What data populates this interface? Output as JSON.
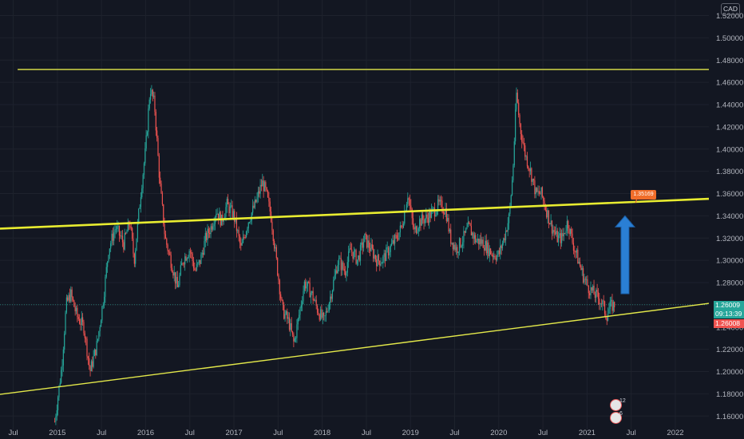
{
  "header": {
    "currency_badge": "CAD"
  },
  "price_panel": {
    "last_price": "1.26009",
    "countdown": "09:13:39",
    "bid_price": "1.26008",
    "last_color": "#26a69a",
    "bid_color": "#ef5350"
  },
  "annotation": {
    "callout_text": "1.35169",
    "callout_color": "#f06d2a",
    "arrow_color": "#2a7fd4"
  },
  "events": {
    "badge_1": "12",
    "badge_2": "6"
  },
  "chart_data": {
    "type": "candlestick",
    "instrument_quote": "CAD",
    "y_ticks": [
      "1.52000",
      "1.50000",
      "1.48000",
      "1.46000",
      "1.44000",
      "1.42000",
      "1.40000",
      "1.38000",
      "1.36000",
      "1.34000",
      "1.32000",
      "1.30000",
      "1.28000",
      "1.26000",
      "1.24000",
      "1.22000",
      "1.20000",
      "1.18000",
      "1.16000"
    ],
    "y_tick_values": [
      1.52,
      1.5,
      1.48,
      1.46,
      1.44,
      1.42,
      1.4,
      1.38,
      1.36,
      1.34,
      1.32,
      1.3,
      1.28,
      1.26,
      1.24,
      1.22,
      1.2,
      1.18,
      1.16
    ],
    "ylim": [
      1.148,
      1.534
    ],
    "x_tick_labels": [
      {
        "label": "Jul",
        "t": 2014.5
      },
      {
        "label": "2015",
        "t": 2015.0
      },
      {
        "label": "Jul",
        "t": 2015.5
      },
      {
        "label": "2016",
        "t": 2016.0
      },
      {
        "label": "Jul",
        "t": 2016.5
      },
      {
        "label": "2017",
        "t": 2017.0
      },
      {
        "label": "Jul",
        "t": 2017.5
      },
      {
        "label": "2018",
        "t": 2018.0
      },
      {
        "label": "Jul",
        "t": 2018.5
      },
      {
        "label": "2019",
        "t": 2019.0
      },
      {
        "label": "Jul",
        "t": 2019.5
      },
      {
        "label": "2020",
        "t": 2020.0
      },
      {
        "label": "Jul",
        "t": 2020.5
      },
      {
        "label": "2021",
        "t": 2021.0
      },
      {
        "label": "Jul",
        "t": 2021.5
      },
      {
        "label": "2022",
        "t": 2022.0
      }
    ],
    "xlim": [
      2014.35,
      2022.38
    ],
    "price_path": [
      [
        2014.97,
        1.155
      ],
      [
        2015.05,
        1.205
      ],
      [
        2015.1,
        1.26
      ],
      [
        2015.15,
        1.27
      ],
      [
        2015.22,
        1.25
      ],
      [
        2015.3,
        1.24
      ],
      [
        2015.37,
        1.2
      ],
      [
        2015.45,
        1.225
      ],
      [
        2015.52,
        1.265
      ],
      [
        2015.58,
        1.31
      ],
      [
        2015.66,
        1.33
      ],
      [
        2015.75,
        1.315
      ],
      [
        2015.82,
        1.335
      ],
      [
        2015.87,
        1.3
      ],
      [
        2015.95,
        1.365
      ],
      [
        2016.0,
        1.4
      ],
      [
        2016.05,
        1.455
      ],
      [
        2016.1,
        1.44
      ],
      [
        2016.16,
        1.37
      ],
      [
        2016.22,
        1.32
      ],
      [
        2016.3,
        1.295
      ],
      [
        2016.36,
        1.275
      ],
      [
        2016.42,
        1.3
      ],
      [
        2016.5,
        1.31
      ],
      [
        2016.56,
        1.29
      ],
      [
        2016.62,
        1.3
      ],
      [
        2016.68,
        1.32
      ],
      [
        2016.74,
        1.33
      ],
      [
        2016.8,
        1.345
      ],
      [
        2016.86,
        1.335
      ],
      [
        2016.92,
        1.35
      ],
      [
        2017.0,
        1.34
      ],
      [
        2017.08,
        1.31
      ],
      [
        2017.16,
        1.335
      ],
      [
        2017.24,
        1.35
      ],
      [
        2017.32,
        1.37
      ],
      [
        2017.36,
        1.362
      ],
      [
        2017.42,
        1.34
      ],
      [
        2017.48,
        1.3
      ],
      [
        2017.55,
        1.255
      ],
      [
        2017.62,
        1.245
      ],
      [
        2017.68,
        1.225
      ],
      [
        2017.74,
        1.252
      ],
      [
        2017.8,
        1.28
      ],
      [
        2017.88,
        1.27
      ],
      [
        2017.95,
        1.255
      ],
      [
        2018.02,
        1.245
      ],
      [
        2018.1,
        1.27
      ],
      [
        2018.18,
        1.3
      ],
      [
        2018.26,
        1.29
      ],
      [
        2018.32,
        1.31
      ],
      [
        2018.4,
        1.3
      ],
      [
        2018.48,
        1.32
      ],
      [
        2018.55,
        1.31
      ],
      [
        2018.62,
        1.3
      ],
      [
        2018.68,
        1.3
      ],
      [
        2018.76,
        1.31
      ],
      [
        2018.84,
        1.32
      ],
      [
        2018.9,
        1.33
      ],
      [
        2018.97,
        1.36
      ],
      [
        2019.04,
        1.325
      ],
      [
        2019.1,
        1.335
      ],
      [
        2019.18,
        1.338
      ],
      [
        2019.25,
        1.343
      ],
      [
        2019.32,
        1.35
      ],
      [
        2019.4,
        1.345
      ],
      [
        2019.45,
        1.32
      ],
      [
        2019.52,
        1.31
      ],
      [
        2019.6,
        1.32
      ],
      [
        2019.66,
        1.33
      ],
      [
        2019.74,
        1.318
      ],
      [
        2019.82,
        1.316
      ],
      [
        2019.88,
        1.31
      ],
      [
        2019.94,
        1.305
      ],
      [
        2020.0,
        1.305
      ],
      [
        2020.06,
        1.32
      ],
      [
        2020.12,
        1.34
      ],
      [
        2020.16,
        1.38
      ],
      [
        2020.2,
        1.45
      ],
      [
        2020.24,
        1.42
      ],
      [
        2020.3,
        1.395
      ],
      [
        2020.36,
        1.38
      ],
      [
        2020.42,
        1.36
      ],
      [
        2020.48,
        1.36
      ],
      [
        2020.54,
        1.345
      ],
      [
        2020.6,
        1.33
      ],
      [
        2020.66,
        1.32
      ],
      [
        2020.72,
        1.32
      ],
      [
        2020.78,
        1.335
      ],
      [
        2020.84,
        1.315
      ],
      [
        2020.9,
        1.3
      ],
      [
        2020.96,
        1.285
      ],
      [
        2021.02,
        1.275
      ],
      [
        2021.08,
        1.27
      ],
      [
        2021.14,
        1.265
      ],
      [
        2021.18,
        1.26
      ],
      [
        2021.22,
        1.25
      ],
      [
        2021.26,
        1.258
      ],
      [
        2021.31,
        1.26
      ]
    ],
    "last_close": 1.26009,
    "trendlines": [
      {
        "name": "horizontal resistance",
        "points": [
          [
            2014.55,
            1.4715
          ],
          [
            2022.38,
            1.4715
          ]
        ],
        "color": "#e3e84a",
        "width": 1.4
      },
      {
        "name": "upper channel",
        "points": [
          [
            2014.35,
            1.3285
          ],
          [
            2022.38,
            1.3553
          ]
        ],
        "color": "#e8ec30",
        "width": 2.6
      },
      {
        "name": "lower support",
        "points": [
          [
            2014.35,
            1.1795
          ],
          [
            2022.38,
            1.2613
          ]
        ],
        "color": "#e3e84a",
        "width": 1.4
      }
    ],
    "projection_arrow": {
      "x": 2021.43,
      "y_from": 1.27,
      "y_to": 1.34
    },
    "callout_anchor": {
      "x": 2021.55,
      "y": 1.3516
    }
  }
}
